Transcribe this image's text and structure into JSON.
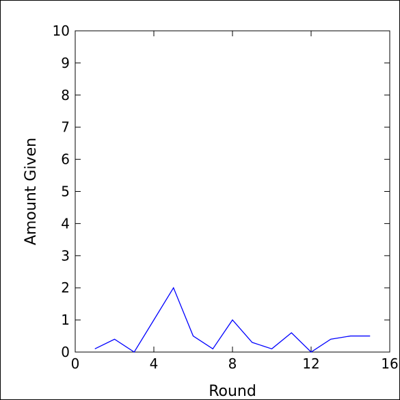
{
  "chart_data": {
    "type": "line",
    "title": "",
    "xlabel": "Round",
    "ylabel": "Amount Given",
    "xlim": [
      0,
      16
    ],
    "ylim": [
      0,
      10
    ],
    "xticks": [
      0,
      4,
      8,
      12,
      16
    ],
    "yticks": [
      0,
      1,
      2,
      3,
      4,
      5,
      6,
      7,
      8,
      9,
      10
    ],
    "grid": false,
    "series": [
      {
        "color": "#0000ff",
        "x": [
          1,
          2,
          3,
          4,
          5,
          6,
          7,
          8,
          9,
          10,
          11,
          12,
          13,
          14,
          15
        ],
        "y": [
          0.1,
          0.4,
          0.0,
          1.0,
          2.0,
          0.5,
          0.1,
          1.0,
          0.3,
          0.1,
          0.6,
          0.0,
          0.4,
          0.5,
          0.5
        ]
      }
    ]
  }
}
